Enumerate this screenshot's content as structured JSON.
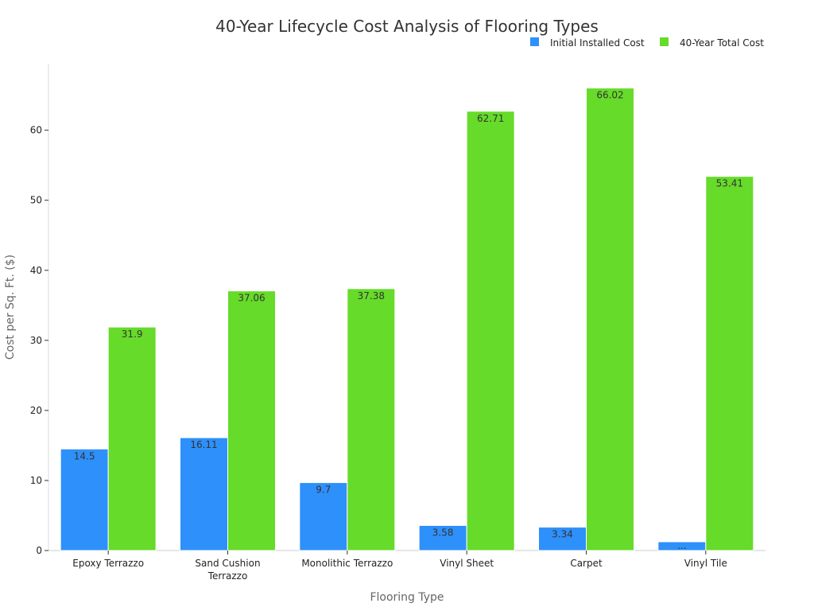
{
  "chart_data": {
    "type": "bar",
    "title": "40-Year Lifecycle Cost Analysis of Flooring Types",
    "xlabel": "Flooring Type",
    "ylabel": "Cost per Sq. Ft. ($)",
    "categories": [
      [
        "Epoxy Terrazzo"
      ],
      [
        "Sand Cushion",
        "Terrazzo"
      ],
      [
        "Monolithic Terrazzo"
      ],
      [
        "Vinyl Sheet"
      ],
      [
        "Carpet"
      ],
      [
        "Vinyl Tile"
      ]
    ],
    "series": [
      {
        "name": "Initial Installed Cost",
        "color": "#2e90fa",
        "values": [
          14.5,
          16.11,
          9.7,
          3.58,
          3.34,
          1.25
        ],
        "labels": [
          "14.5",
          "16.11",
          "9.7",
          "3.58",
          "3.34",
          "..."
        ]
      },
      {
        "name": "40-Year Total Cost",
        "color": "#66db2a",
        "values": [
          31.9,
          37.06,
          37.38,
          62.71,
          66.02,
          53.41
        ],
        "labels": [
          "31.9",
          "37.06",
          "37.38",
          "62.71",
          "66.02",
          "53.41"
        ]
      }
    ],
    "yticks": [
      0,
      10,
      20,
      30,
      40,
      50,
      60
    ],
    "ylim": [
      0,
      69.5
    ],
    "legend_position": "top-right",
    "grid": false
  }
}
